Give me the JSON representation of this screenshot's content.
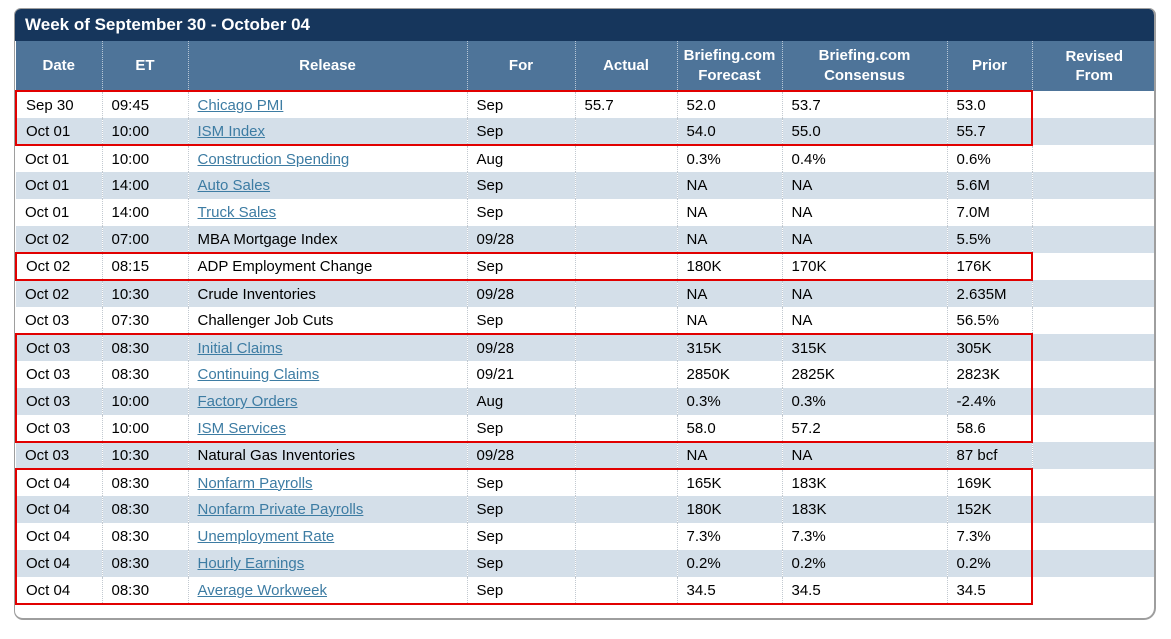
{
  "title": "Week of September 30 - October 04",
  "colors": {
    "title_bar": "#16365c",
    "header": "#4e7499",
    "alt_row": "#d4dfe9",
    "highlight_box": "#e10000",
    "link": "#3d7ca3"
  },
  "columns": [
    {
      "id": "date",
      "label": "Date"
    },
    {
      "id": "et",
      "label": "ET"
    },
    {
      "id": "release",
      "label": "Release"
    },
    {
      "id": "for",
      "label": "For"
    },
    {
      "id": "actual",
      "label": "Actual"
    },
    {
      "id": "forecast",
      "label": "Briefing.com\nForecast"
    },
    {
      "id": "consensus",
      "label": "Briefing.com\nConsensus"
    },
    {
      "id": "prior",
      "label": "Prior"
    },
    {
      "id": "revised",
      "label": "Revised\nFrom"
    }
  ],
  "rows": [
    {
      "date": "Sep 30",
      "et": "09:45",
      "release": "Chicago PMI",
      "link": true,
      "for": "Sep",
      "actual": "55.7",
      "forecast": "52.0",
      "consensus": "53.7",
      "prior": "53.0",
      "revised": "",
      "box": "top"
    },
    {
      "date": "Oct 01",
      "et": "10:00",
      "release": "ISM Index",
      "link": true,
      "for": "Sep",
      "actual": "",
      "forecast": "54.0",
      "consensus": "55.0",
      "prior": "55.7",
      "revised": "",
      "box": "bottom"
    },
    {
      "date": "Oct 01",
      "et": "10:00",
      "release": "Construction Spending",
      "link": true,
      "for": "Aug",
      "actual": "",
      "forecast": "0.3%",
      "consensus": "0.4%",
      "prior": "0.6%",
      "revised": "",
      "box": null
    },
    {
      "date": "Oct 01",
      "et": "14:00",
      "release": "Auto Sales",
      "link": true,
      "for": "Sep",
      "actual": "",
      "forecast": "NA",
      "consensus": "NA",
      "prior": "5.6M",
      "revised": "",
      "box": null
    },
    {
      "date": "Oct 01",
      "et": "14:00",
      "release": "Truck Sales",
      "link": true,
      "for": "Sep",
      "actual": "",
      "forecast": "NA",
      "consensus": "NA",
      "prior": "7.0M",
      "revised": "",
      "box": null
    },
    {
      "date": "Oct 02",
      "et": "07:00",
      "release": "MBA Mortgage Index",
      "link": false,
      "for": "09/28",
      "actual": "",
      "forecast": "NA",
      "consensus": "NA",
      "prior": "5.5%",
      "revised": "",
      "box": null
    },
    {
      "date": "Oct 02",
      "et": "08:15",
      "release": "ADP Employment Change",
      "link": false,
      "for": "Sep",
      "actual": "",
      "forecast": "180K",
      "consensus": "170K",
      "prior": "176K",
      "revised": "",
      "box": "both"
    },
    {
      "date": "Oct 02",
      "et": "10:30",
      "release": "Crude Inventories",
      "link": false,
      "for": "09/28",
      "actual": "",
      "forecast": "NA",
      "consensus": "NA",
      "prior": "2.635M",
      "revised": "",
      "box": null
    },
    {
      "date": "Oct 03",
      "et": "07:30",
      "release": "Challenger Job Cuts",
      "link": false,
      "for": "Sep",
      "actual": "",
      "forecast": "NA",
      "consensus": "NA",
      "prior": "56.5%",
      "revised": "",
      "box": null
    },
    {
      "date": "Oct 03",
      "et": "08:30",
      "release": "Initial Claims",
      "link": true,
      "for": "09/28",
      "actual": "",
      "forecast": "315K",
      "consensus": "315K",
      "prior": "305K",
      "revised": "",
      "box": "top"
    },
    {
      "date": "Oct 03",
      "et": "08:30",
      "release": "Continuing Claims",
      "link": true,
      "for": "09/21",
      "actual": "",
      "forecast": "2850K",
      "consensus": "2825K",
      "prior": "2823K",
      "revised": "",
      "box": "mid"
    },
    {
      "date": "Oct 03",
      "et": "10:00",
      "release": "Factory Orders",
      "link": true,
      "for": "Aug",
      "actual": "",
      "forecast": "0.3%",
      "consensus": "0.3%",
      "prior": "-2.4%",
      "revised": "",
      "box": "mid"
    },
    {
      "date": "Oct 03",
      "et": "10:00",
      "release": "ISM Services",
      "link": true,
      "for": "Sep",
      "actual": "",
      "forecast": "58.0",
      "consensus": "57.2",
      "prior": "58.6",
      "revised": "",
      "box": "bottom"
    },
    {
      "date": "Oct 03",
      "et": "10:30",
      "release": "Natural Gas Inventories",
      "link": false,
      "for": "09/28",
      "actual": "",
      "forecast": "NA",
      "consensus": "NA",
      "prior": "87 bcf",
      "revised": "",
      "box": null
    },
    {
      "date": "Oct 04",
      "et": "08:30",
      "release": "Nonfarm Payrolls",
      "link": true,
      "for": "Sep",
      "actual": "",
      "forecast": "165K",
      "consensus": "183K",
      "prior": "169K",
      "revised": "",
      "box": "top"
    },
    {
      "date": "Oct 04",
      "et": "08:30",
      "release": "Nonfarm Private Payrolls",
      "link": true,
      "for": "Sep",
      "actual": "",
      "forecast": "180K",
      "consensus": "183K",
      "prior": "152K",
      "revised": "",
      "box": "mid"
    },
    {
      "date": "Oct 04",
      "et": "08:30",
      "release": "Unemployment Rate",
      "link": true,
      "for": "Sep",
      "actual": "",
      "forecast": "7.3%",
      "consensus": "7.3%",
      "prior": "7.3%",
      "revised": "",
      "box": "mid"
    },
    {
      "date": "Oct 04",
      "et": "08:30",
      "release": "Hourly Earnings",
      "link": true,
      "for": "Sep",
      "actual": "",
      "forecast": "0.2%",
      "consensus": "0.2%",
      "prior": "0.2%",
      "revised": "",
      "box": "mid"
    },
    {
      "date": "Oct 04",
      "et": "08:30",
      "release": "Average Workweek",
      "link": true,
      "for": "Sep",
      "actual": "",
      "forecast": "34.5",
      "consensus": "34.5",
      "prior": "34.5",
      "revised": "",
      "box": "bottom"
    }
  ]
}
